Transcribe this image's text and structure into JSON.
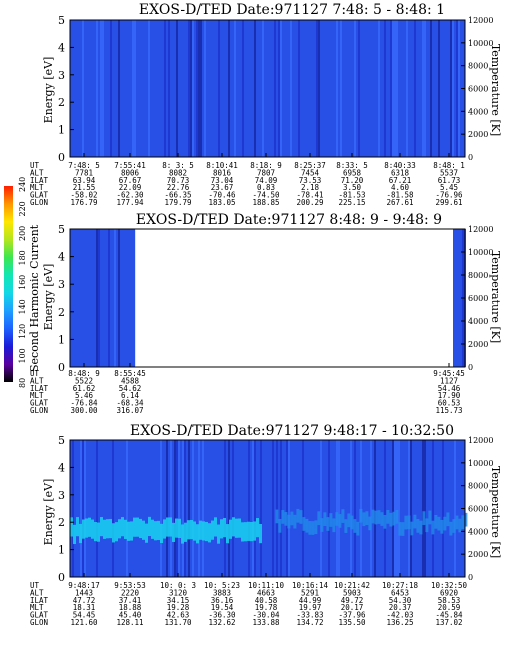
{
  "colors": {
    "cb_stops": [
      "#000000",
      "#5a00a0",
      "#1b1bd8",
      "#1e62ff",
      "#1ea0ff",
      "#12d8e6",
      "#12e6b4",
      "#3ce650",
      "#b4e61e",
      "#ffe600",
      "#ff9600",
      "#ff1e00"
    ],
    "spectrogram_base": "#2850e6",
    "band_color": "#19d2f0",
    "background": "#ffffff"
  },
  "colorbar": {
    "label": "Second Harmonic Current",
    "ticks": [
      "80",
      "100",
      "120",
      "140",
      "160",
      "180",
      "200",
      "220",
      "240"
    ]
  },
  "chart_data": [
    {
      "type": "heatmap",
      "title": "EXOS-D/TED   Date:971127  7:48: 5 - 8:48: 1",
      "ylabel": "Energy [eV]",
      "ylabel_right": "Temperature [K]",
      "ylim": [
        0,
        5
      ],
      "y_ticks": [
        "0",
        "1",
        "2",
        "3",
        "4",
        "5"
      ],
      "y2lim": [
        0,
        12000
      ],
      "y2_ticks": [
        "0",
        "2000",
        "4000",
        "6000",
        "8000",
        "10000",
        "12000"
      ],
      "no_data_ranges": [],
      "ephemeris_rows": [
        "UT",
        "ALT",
        "ILAT",
        "MLT",
        "GLAT",
        "GLON"
      ],
      "ephemeris": [
        [
          "7:48: 5",
          "7781",
          "63.94",
          "21.55",
          "-58.02",
          "176.79"
        ],
        [
          "7:55:41",
          "8006",
          "67.67",
          "22.09",
          "-62.30",
          "177.94"
        ],
        [
          "8: 3: 5",
          "8082",
          "70.73",
          "22.76",
          "-66.35",
          "179.79"
        ],
        [
          "8:10:41",
          "8016",
          "73.04",
          "23.67",
          "-70.46",
          "183.05"
        ],
        [
          "8:18: 9",
          "7807",
          "74.09",
          "0.83",
          "-74.50",
          "188.85"
        ],
        [
          "8:25:37",
          "7454",
          "73.53",
          "2.18",
          "-78.41",
          "200.29"
        ],
        [
          "8:33: 5",
          "6958",
          "71.20",
          "3.50",
          "-81.53",
          "225.15"
        ],
        [
          "8:40:33",
          "6318",
          "67.21",
          "4.60",
          "-81.58",
          "267.61"
        ],
        [
          "8:48: 1",
          "5537",
          "61.73",
          "5.45",
          "-76.96",
          "299.61"
        ]
      ]
    },
    {
      "type": "heatmap",
      "title": "EXOS-D/TED   Date:971127  8:48: 9 - 9:48: 9",
      "ylabel": "Energy [eV]",
      "ylabel_right": "Temperature [K]",
      "ylim": [
        0,
        5
      ],
      "y_ticks": [
        "0",
        "1",
        "2",
        "3",
        "4",
        "5"
      ],
      "y2lim": [
        0,
        12000
      ],
      "y2_ticks": [
        "0",
        "2000",
        "4000",
        "6000",
        "8000",
        "10000",
        "12000"
      ],
      "no_data_ranges": [
        [
          0.165,
          0.97
        ]
      ],
      "ephemeris_rows": [
        "UT",
        "ALT",
        "ILAT",
        "MLT",
        "GLAT",
        "GLON"
      ],
      "ephemeris": [
        [
          "8:48: 9",
          "5522",
          "61.62",
          "5.46",
          "-76.84",
          "300.00"
        ],
        [
          "8:55:45",
          "4588",
          "54.62",
          "6.14",
          "-68.34",
          "316.07"
        ],
        [
          "",
          "",
          "",
          "",
          "",
          ""
        ],
        [
          "",
          "",
          "",
          "",
          "",
          ""
        ],
        [
          "",
          "",
          "",
          "",
          "",
          ""
        ],
        [
          "",
          "",
          "",
          "",
          "",
          ""
        ],
        [
          "",
          "",
          "",
          "",
          "",
          ""
        ],
        [
          "",
          "",
          "",
          "",
          "",
          ""
        ],
        [
          "9:45:45",
          "1127",
          "54.46",
          "17.90",
          "60.53",
          "115.73"
        ]
      ]
    },
    {
      "type": "heatmap",
      "title": "EXOS-D/TED   Date:971127  9:48:17 - 10:32:50",
      "ylabel": "Energy [eV]",
      "ylabel_right": "Temperature [K]",
      "ylim": [
        0,
        5
      ],
      "y_ticks": [
        "0",
        "1",
        "2",
        "3",
        "4",
        "5"
      ],
      "y2lim": [
        0,
        12000
      ],
      "y2_ticks": [
        "0",
        "2000",
        "4000",
        "6000",
        "8000",
        "10000",
        "12000"
      ],
      "no_data_ranges": [],
      "ephemeris_rows": [
        "UT",
        "ALT",
        "ILAT",
        "MLT",
        "GLAT",
        "GLON"
      ],
      "ephemeris": [
        [
          "9:48:17",
          "1443",
          "47.72",
          "18.31",
          "54.45",
          "121.60"
        ],
        [
          "9:53:53",
          "2220",
          "37.41",
          "18.88",
          "45.40",
          "128.11"
        ],
        [
          "10: 0: 3",
          "3120",
          "34.15",
          "19.28",
          "42.63",
          "131.70"
        ],
        [
          "10: 5:23",
          "3883",
          "36.16",
          "19.54",
          "-36.30",
          "132.62"
        ],
        [
          "10:11:10",
          "4663",
          "40.58",
          "19.78",
          "-30.04",
          "133.88"
        ],
        [
          "10:16:14",
          "5291",
          "44.99",
          "19.97",
          "-33.83",
          "134.72"
        ],
        [
          "10:21:42",
          "5903",
          "49.72",
          "20.17",
          "-37.96",
          "135.50"
        ],
        [
          "10:27:18",
          "6453",
          "54.30",
          "20.37",
          "-42.03",
          "136.25"
        ],
        [
          "10:32:50",
          "6920",
          "58.53",
          "20.59",
          "-45.84",
          "137.02"
        ]
      ]
    }
  ]
}
